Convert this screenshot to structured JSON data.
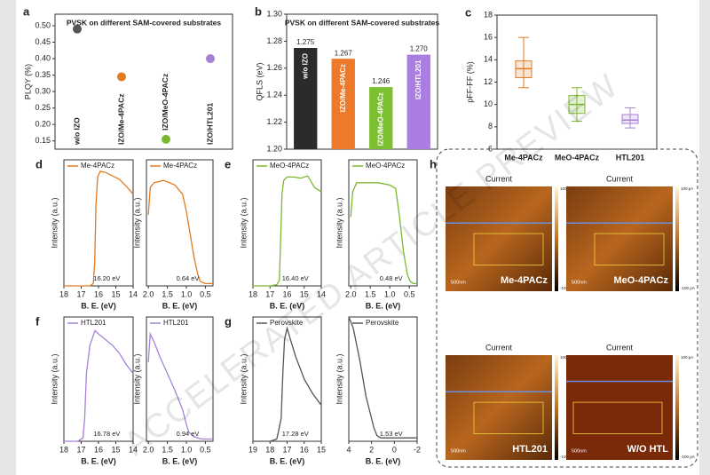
{
  "chart_data": [
    {
      "type": "scatter",
      "panel": "a",
      "title": "PVSK on different SAM-covered substrates",
      "ylabel": "PLQY (%)",
      "categories": [
        "w/o IZO",
        "IZO/Me-4PACz",
        "IZO/MeO-4PACz",
        "IZO/HTL201"
      ],
      "values": [
        0.49,
        0.345,
        0.155,
        0.4
      ],
      "colors": [
        "#555555",
        "#e07b24",
        "#7cb82f",
        "#a681d6"
      ],
      "ylim": [
        0.125,
        0.535
      ],
      "yticks": [
        0.15,
        {
          "value": 0.2,
          "label": "0.20"
        },
        0.25,
        {
          "value": 0.3,
          "label": "0.30"
        },
        0.35,
        {
          "value": 0.4,
          "label": "0.40"
        },
        0.45,
        {
          "value": 0.5,
          "label": "0.50"
        }
      ]
    },
    {
      "type": "bar",
      "panel": "b",
      "title": "PVSK on different SAM-covered substrates",
      "ylabel": "QFLS (eV)",
      "categories": [
        "w/o IZO",
        "IZO/Me-4PACz",
        "IZO/MeO-4PACz",
        "IZO/HTL201"
      ],
      "values": [
        1.275,
        1.267,
        1.246,
        1.27
      ],
      "value_labels": [
        "1.275",
        "1.267",
        "1.246",
        "1.270"
      ],
      "colors": [
        "#2b2b2b",
        "#ec7a2a",
        "#7cc031",
        "#a97ee0"
      ],
      "ylim": [
        1.2,
        1.3
      ],
      "yticks": [
        {
          "value": 1.2,
          "label": "1.20"
        },
        1.22,
        1.24,
        1.26,
        1.28,
        {
          "value": 1.3,
          "label": "1.30"
        }
      ]
    },
    {
      "type": "box",
      "panel": "c",
      "ylabel": "pFF-FF (%)",
      "categories": [
        "Me-4PACz",
        "MeO-4PACz",
        "HTL201"
      ],
      "min": [
        11.5,
        8.5,
        7.9
      ],
      "q1": [
        12.4,
        9.2,
        8.3
      ],
      "median": [
        13.2,
        10.0,
        8.6
      ],
      "q3": [
        13.9,
        10.8,
        9.1
      ],
      "max": [
        16.0,
        11.5,
        9.7
      ],
      "colors": [
        "#e07b24",
        "#7cb82f",
        "#a681d6"
      ],
      "ylim": [
        6,
        18
      ],
      "yticks": [
        6,
        8,
        10,
        12,
        14,
        16,
        18
      ]
    },
    {
      "type": "line",
      "panel": "d",
      "xlabel": "B. E. (eV)",
      "ylabel": "Intensity (a.u.)",
      "annotation": "16.20 eV",
      "x": [
        18,
        17,
        16.5,
        16.3,
        16.22,
        16.15,
        16.05,
        15.9,
        15.6,
        15.2,
        14.8,
        14.4,
        14
      ],
      "series": [
        {
          "name": "Me-4PACz",
          "color": "#e07b24",
          "values": [
            0,
            0,
            0,
            0.02,
            0.2,
            0.7,
            0.95,
            1.0,
            0.99,
            0.96,
            0.93,
            0.87,
            0.8
          ]
        }
      ],
      "xlim": [
        18,
        14
      ],
      "xticks": [
        18,
        17,
        16,
        15,
        14
      ],
      "ylim": [
        0,
        1.1
      ]
    },
    {
      "type": "line",
      "xlabel": "B. E. (eV)",
      "ylabel": "Intensity (a.u.)",
      "annotation": "0.64 eV",
      "x": [
        2.0,
        1.95,
        1.85,
        1.6,
        1.3,
        1.1,
        1.0,
        0.9,
        0.8,
        0.7,
        0.64,
        0.5,
        0.3
      ],
      "series": [
        {
          "name": "Me-4PACz",
          "color": "#e07b24",
          "values": [
            0.62,
            0.86,
            0.9,
            0.92,
            0.88,
            0.8,
            0.65,
            0.45,
            0.25,
            0.1,
            0.04,
            0.02,
            0.02
          ]
        }
      ],
      "xlim": [
        2.05,
        0.3
      ],
      "xticks": [
        {
          "value": 2,
          "label": "2.0"
        },
        1.5,
        {
          "value": 1,
          "label": "1.0"
        },
        0.5
      ],
      "ylim": [
        0,
        1.1
      ]
    },
    {
      "type": "line",
      "panel": "e",
      "xlabel": "B. E. (eV)",
      "ylabel": "Intensity (a.u.)",
      "annotation": "16.40 eV",
      "x": [
        18,
        17,
        16.6,
        16.45,
        16.38,
        16.3,
        16.2,
        16.0,
        15.6,
        15.2,
        14.8,
        14.4,
        14
      ],
      "series": [
        {
          "name": "MeO-4PACz",
          "color": "#7cb82f",
          "values": [
            0,
            0,
            0.01,
            0.05,
            0.4,
            0.8,
            0.92,
            0.95,
            0.95,
            0.94,
            0.96,
            0.86,
            0.82
          ]
        }
      ],
      "xlim": [
        18,
        14
      ],
      "xticks": [
        18,
        17,
        16,
        15,
        14
      ],
      "ylim": [
        0,
        1.1
      ]
    },
    {
      "type": "line",
      "xlabel": "B. E. (eV)",
      "ylabel": "Intensity (a.u.)",
      "annotation": "0.48 eV",
      "x": [
        2.0,
        1.95,
        1.85,
        1.6,
        1.3,
        1.0,
        0.85,
        0.75,
        0.65,
        0.55,
        0.48,
        0.4,
        0.3
      ],
      "series": [
        {
          "name": "MeO-4PACz",
          "color": "#7cb82f",
          "values": [
            0.6,
            0.82,
            0.9,
            0.9,
            0.9,
            0.88,
            0.85,
            0.6,
            0.3,
            0.1,
            0.04,
            0.02,
            0.02
          ]
        }
      ],
      "xlim": [
        2.05,
        0.3
      ],
      "xticks": [
        {
          "value": 2,
          "label": "2.0"
        },
        1.5,
        {
          "value": 1,
          "label": "1.0"
        },
        0.5
      ],
      "ylim": [
        0,
        1.1
      ]
    },
    {
      "type": "line",
      "panel": "f",
      "xlabel": "B. E. (eV)",
      "ylabel": "Intensity (a.u.)",
      "annotation": "16.78 eV",
      "x": [
        18,
        17.2,
        16.9,
        16.8,
        16.7,
        16.5,
        16.2,
        16.0,
        15.6,
        15.2,
        14.8,
        14.4,
        14
      ],
      "series": [
        {
          "name": "HTL201",
          "color": "#a681d6",
          "values": [
            0,
            0,
            0.03,
            0.2,
            0.6,
            0.85,
            0.98,
            0.95,
            0.9,
            0.85,
            0.78,
            0.68,
            0.6
          ]
        }
      ],
      "xlim": [
        18,
        14
      ],
      "xticks": [
        18,
        17,
        16,
        15,
        14
      ],
      "ylim": [
        0,
        1.1
      ]
    },
    {
      "type": "line",
      "xlabel": "B. E. (eV)",
      "ylabel": "Intensity (a.u.)",
      "annotation": "0.94 eV",
      "x": [
        2.0,
        1.95,
        1.85,
        1.7,
        1.5,
        1.3,
        1.1,
        1.0,
        0.94,
        0.8,
        0.6,
        0.4,
        0.3
      ],
      "series": [
        {
          "name": "HTL201",
          "color": "#a681d6",
          "values": [
            0.7,
            0.95,
            0.88,
            0.75,
            0.6,
            0.45,
            0.28,
            0.15,
            0.08,
            0.04,
            0.02,
            0.02,
            0.02
          ]
        }
      ],
      "xlim": [
        2.05,
        0.3
      ],
      "xticks": [
        {
          "value": 2,
          "label": "2.0"
        },
        1.5,
        {
          "value": 1,
          "label": "1.0"
        },
        0.5
      ],
      "ylim": [
        0,
        1.1
      ]
    },
    {
      "type": "line",
      "panel": "g",
      "xlabel": "B. E. (eV)",
      "ylabel": "Intensity (a.u.)",
      "annotation": "17.28 eV",
      "x": [
        19,
        18,
        17.6,
        17.35,
        17.25,
        17.15,
        17.0,
        16.8,
        16.5,
        16,
        15.5,
        15
      ],
      "series": [
        {
          "name": "Perovskite",
          "color": "#555555",
          "values": [
            0,
            0,
            0.02,
            0.2,
            0.6,
            0.9,
            1.0,
            0.9,
            0.75,
            0.55,
            0.42,
            0.32
          ]
        }
      ],
      "xlim": [
        19,
        15
      ],
      "xticks": [
        19,
        18,
        17,
        16,
        15
      ],
      "ylim": [
        0,
        1.1
      ]
    },
    {
      "type": "line",
      "xlabel": "B. E. (eV)",
      "ylabel": "Intensity (a.u.)",
      "annotation": "1.53 eV",
      "x": [
        4,
        3.6,
        3,
        2.5,
        2,
        1.8,
        1.6,
        1.53,
        1.2,
        0,
        -1,
        -2
      ],
      "series": [
        {
          "name": "Perovskite",
          "color": "#555555",
          "values": [
            1.1,
            1.0,
            0.7,
            0.4,
            0.2,
            0.12,
            0.07,
            0.05,
            0.03,
            0.03,
            0.03,
            0.03
          ]
        }
      ],
      "xlim": [
        4,
        -2
      ],
      "xticks": [
        4,
        2,
        0,
        -2
      ],
      "ylim": [
        0,
        1.1
      ]
    }
  ],
  "afm": {
    "panel": "h",
    "colorbar_max": "100 pA",
    "colorbar_min": "-100 pA",
    "images": [
      {
        "title": "Current",
        "label": "Me-4PACz",
        "scale": "500nm"
      },
      {
        "title": "Current",
        "label": "MeO-4PACz",
        "scale": "500nm"
      },
      {
        "title": "Current",
        "label": "HTL201",
        "scale": "500nm"
      },
      {
        "title": "Current",
        "label": "W/O HTL",
        "scale": "500nm"
      }
    ]
  },
  "watermark": "ACCELERATED ARTICLE PREVIEW"
}
